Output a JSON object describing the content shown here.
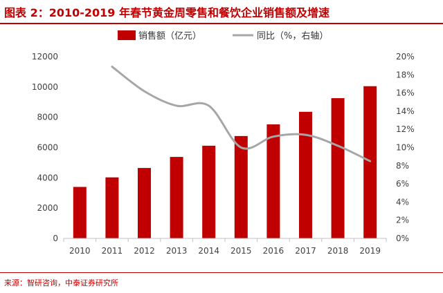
{
  "header": {
    "title": "图表 2：2010-2019 年春节黄金周零售和餐饮企业销售额及增速"
  },
  "footer": {
    "source": "来源：智研咨询，中泰证券研究所"
  },
  "colors": {
    "accent": "#c00000",
    "bar": "#c00000",
    "line": "#a6a6a6",
    "axis_text": "#404040"
  },
  "chart_data": {
    "type": "bar",
    "categories": [
      "2010",
      "2011",
      "2012",
      "2013",
      "2014",
      "2015",
      "2016",
      "2017",
      "2018",
      "2019"
    ],
    "series": [
      {
        "name": "销售额（亿元）",
        "type": "bar",
        "axis": "left",
        "values": [
          3400,
          4030,
          4650,
          5380,
          6120,
          6760,
          7530,
          8360,
          9260,
          10050
        ]
      },
      {
        "name": "同比（%，右轴）",
        "type": "line",
        "axis": "right",
        "values": [
          null,
          18.9,
          16.2,
          14.6,
          14.6,
          10.0,
          11.2,
          11.4,
          10.2,
          8.5
        ]
      }
    ],
    "y_left": {
      "min": 0,
      "max": 12000,
      "ticks": [
        "0",
        "2000",
        "4000",
        "6000",
        "8000",
        "10000",
        "12000"
      ]
    },
    "y_right": {
      "min": 0,
      "max": 20,
      "ticks": [
        "0%",
        "2%",
        "4%",
        "6%",
        "8%",
        "10%",
        "12%",
        "14%",
        "16%",
        "18%",
        "20%"
      ]
    },
    "legend_position": "top-center",
    "grid": false
  }
}
